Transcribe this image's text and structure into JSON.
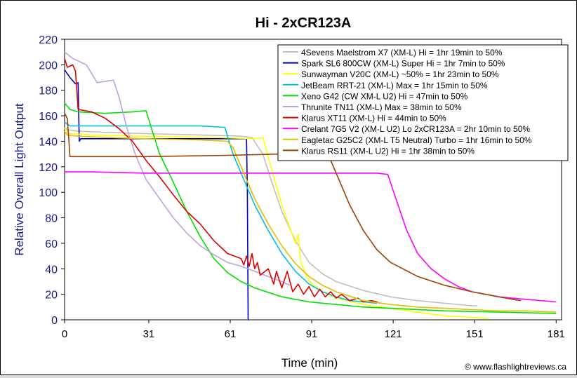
{
  "chart_data": {
    "type": "line",
    "title": "Hi - 2xCR123A",
    "xlabel": "Time (min)",
    "ylabel": "Relative Overall Light Output",
    "credit": "© www.flashlightreviews.ca",
    "xlim": [
      0,
      183
    ],
    "ylim": [
      0,
      220
    ],
    "xticks": [
      0,
      31,
      61,
      91,
      121,
      151,
      181
    ],
    "yticks": [
      0,
      20,
      40,
      60,
      80,
      100,
      120,
      140,
      160,
      180,
      200,
      220
    ],
    "legend_position": "top-right",
    "series": [
      {
        "name": "4Sevens Maelstrom X7 (XM-L) Hi = 1hr 19min to 50%",
        "color": "#c0c0c0",
        "points": [
          [
            0,
            151
          ],
          [
            1,
            149
          ],
          [
            5,
            148
          ],
          [
            15,
            147
          ],
          [
            30,
            146
          ],
          [
            50,
            145
          ],
          [
            65,
            144
          ],
          [
            69,
            143
          ],
          [
            73,
            130
          ],
          [
            76,
            110
          ],
          [
            80,
            85
          ],
          [
            85,
            62
          ],
          [
            90,
            45
          ],
          [
            95,
            36
          ],
          [
            100,
            30
          ],
          [
            110,
            23
          ],
          [
            120,
            18
          ],
          [
            130,
            15
          ],
          [
            140,
            13
          ],
          [
            150,
            11
          ],
          [
            152,
            11
          ]
        ]
      },
      {
        "name": "Spark SL6 800CW (XM-L) Super Hi = 1hr 7min to 50%",
        "color": "#0000c0",
        "points": [
          [
            0,
            196
          ],
          [
            2,
            190
          ],
          [
            4,
            185
          ],
          [
            5,
            186
          ],
          [
            5.4,
            140
          ],
          [
            6,
            142
          ],
          [
            10,
            142
          ],
          [
            40,
            142
          ],
          [
            60,
            142
          ],
          [
            67,
            142
          ],
          [
            67.3,
            100
          ],
          [
            67.6,
            0
          ],
          [
            68,
            0
          ]
        ]
      },
      {
        "name": "Sunwayman V20C (XM-L) ~50% = 1hr 23min to 50%",
        "color": "#ffff00",
        "points": [
          [
            0,
            150
          ],
          [
            2,
            146
          ],
          [
            10,
            145
          ],
          [
            30,
            144
          ],
          [
            55,
            143
          ],
          [
            70,
            142
          ],
          [
            73,
            143
          ],
          [
            76,
            120
          ],
          [
            80,
            90
          ],
          [
            83,
            72
          ],
          [
            85,
            60
          ],
          [
            86,
            67
          ],
          [
            87,
            45
          ],
          [
            90,
            30
          ],
          [
            95,
            22
          ],
          [
            100,
            17
          ],
          [
            110,
            12
          ],
          [
            120,
            9
          ],
          [
            130,
            6
          ],
          [
            140,
            3
          ],
          [
            150,
            2
          ],
          [
            156,
            1
          ]
        ]
      },
      {
        "name": "JetBeam RRT-21 (XM-L) Max = 1hr 15min to 50%",
        "color": "#00c0e0",
        "points": [
          [
            0,
            155
          ],
          [
            2,
            152
          ],
          [
            10,
            152
          ],
          [
            30,
            152
          ],
          [
            50,
            152
          ],
          [
            59,
            151
          ],
          [
            62,
            130
          ],
          [
            66,
            110
          ],
          [
            70,
            90
          ],
          [
            75,
            70
          ],
          [
            80,
            52
          ],
          [
            85,
            38
          ],
          [
            90,
            28
          ],
          [
            95,
            22
          ],
          [
            100,
            18
          ],
          [
            105,
            15
          ],
          [
            110,
            14
          ],
          [
            115,
            13
          ]
        ]
      },
      {
        "name": "Xeno G42 (CW XM-L U2) Hi = 47min to 50%",
        "color": "#00e000",
        "points": [
          [
            0,
            170
          ],
          [
            2,
            165
          ],
          [
            5,
            163
          ],
          [
            15,
            162
          ],
          [
            25,
            163
          ],
          [
            30,
            164
          ],
          [
            32,
            150
          ],
          [
            35,
            130
          ],
          [
            40,
            108
          ],
          [
            45,
            85
          ],
          [
            50,
            65
          ],
          [
            55,
            48
          ],
          [
            60,
            37
          ],
          [
            65,
            30
          ],
          [
            70,
            25
          ],
          [
            80,
            18
          ],
          [
            90,
            14
          ],
          [
            100,
            12
          ],
          [
            110,
            10
          ],
          [
            120,
            9
          ],
          [
            140,
            7
          ],
          [
            160,
            6
          ],
          [
            181,
            5
          ]
        ]
      },
      {
        "name": "Thrunite TN11 (XM-L) Max = 38min to 50%",
        "color": "#c0a0e0",
        "points": [
          [
            0,
            210
          ],
          [
            3,
            205
          ],
          [
            8,
            200
          ],
          [
            12,
            186
          ],
          [
            18,
            188
          ],
          [
            20,
            175
          ],
          [
            23,
            150
          ],
          [
            26,
            130
          ],
          [
            30,
            110
          ],
          [
            35,
            95
          ],
          [
            40,
            80
          ],
          [
            45,
            68
          ],
          [
            50,
            58
          ],
          [
            55,
            51
          ],
          [
            60,
            45
          ],
          [
            65,
            42
          ],
          [
            70,
            38
          ],
          [
            75,
            34
          ],
          [
            80,
            30
          ],
          [
            83,
            27
          ]
        ]
      },
      {
        "name": "Klarus XT11 (XM-L) Hi = 44min to 50%",
        "color": "#e00000",
        "points": [
          [
            0,
            205
          ],
          [
            1,
            198
          ],
          [
            3,
            200
          ],
          [
            4,
            195
          ],
          [
            5,
            165
          ],
          [
            10,
            163
          ],
          [
            15,
            158
          ],
          [
            20,
            150
          ],
          [
            25,
            140
          ],
          [
            30,
            125
          ],
          [
            35,
            112
          ],
          [
            40,
            98
          ],
          [
            45,
            85
          ],
          [
            50,
            75
          ],
          [
            55,
            62
          ],
          [
            60,
            52
          ],
          [
            65,
            48
          ],
          [
            66,
            43
          ],
          [
            67,
            50
          ],
          [
            68,
            42
          ],
          [
            69,
            52
          ],
          [
            70,
            40
          ],
          [
            71,
            45
          ],
          [
            72,
            35
          ],
          [
            75,
            40
          ],
          [
            77,
            28
          ],
          [
            78,
            38
          ],
          [
            80,
            25
          ],
          [
            82,
            38
          ],
          [
            84,
            22
          ],
          [
            86,
            28
          ],
          [
            88,
            20
          ],
          [
            90,
            26
          ],
          [
            92,
            18
          ],
          [
            94,
            24
          ],
          [
            96,
            18
          ],
          [
            98,
            22
          ],
          [
            100,
            17
          ],
          [
            102,
            20
          ],
          [
            105,
            15
          ],
          [
            108,
            17
          ],
          [
            110,
            14
          ],
          [
            113,
            15
          ],
          [
            115,
            14
          ],
          [
            116,
            13
          ]
        ]
      },
      {
        "name": "Crelant 7G5 V2 (XM-L U2) Lo 2xCR123A = 2hr 10min to 50%",
        "color": "#ff00ff",
        "points": [
          [
            0,
            116
          ],
          [
            10,
            116
          ],
          [
            30,
            115
          ],
          [
            60,
            115
          ],
          [
            90,
            115
          ],
          [
            115,
            115
          ],
          [
            119,
            114
          ],
          [
            122,
            95
          ],
          [
            126,
            70
          ],
          [
            130,
            52
          ],
          [
            135,
            40
          ],
          [
            140,
            32
          ],
          [
            145,
            26
          ],
          [
            150,
            22
          ],
          [
            160,
            18
          ],
          [
            170,
            16
          ],
          [
            181,
            14
          ]
        ]
      },
      {
        "name": "Eagletac G25C2 (XM-L T5 Neutral) Turbo = 1hr 16min to 50%",
        "color": "#e0c000",
        "points": [
          [
            0,
            148
          ],
          [
            1,
            145
          ],
          [
            5,
            144
          ],
          [
            15,
            143
          ],
          [
            30,
            142
          ],
          [
            50,
            141
          ],
          [
            60,
            140
          ],
          [
            62,
            135
          ],
          [
            64,
            125
          ],
          [
            67,
            110
          ],
          [
            70,
            95
          ],
          [
            75,
            75
          ],
          [
            80,
            58
          ],
          [
            85,
            44
          ],
          [
            90,
            34
          ],
          [
            95,
            27
          ],
          [
            100,
            22
          ],
          [
            110,
            15
          ],
          [
            120,
            12
          ],
          [
            130,
            10
          ],
          [
            140,
            9
          ],
          [
            150,
            8
          ],
          [
            160,
            7
          ],
          [
            170,
            7
          ],
          [
            181,
            6
          ]
        ]
      },
      {
        "name": "Klarus RS11 (XM-L U2) Hi = 1hr 38min to 50%",
        "color": "#a04000",
        "points": [
          [
            0,
            162
          ],
          [
            1,
            158
          ],
          [
            2,
            128
          ],
          [
            10,
            128
          ],
          [
            30,
            128
          ],
          [
            60,
            129
          ],
          [
            80,
            130
          ],
          [
            90,
            131
          ],
          [
            96,
            131
          ],
          [
            98,
            125
          ],
          [
            101,
            110
          ],
          [
            105,
            90
          ],
          [
            110,
            70
          ],
          [
            115,
            55
          ],
          [
            120,
            45
          ],
          [
            130,
            34
          ],
          [
            140,
            27
          ],
          [
            150,
            22
          ],
          [
            160,
            18
          ],
          [
            165,
            16
          ],
          [
            168,
            15
          ]
        ]
      }
    ]
  }
}
